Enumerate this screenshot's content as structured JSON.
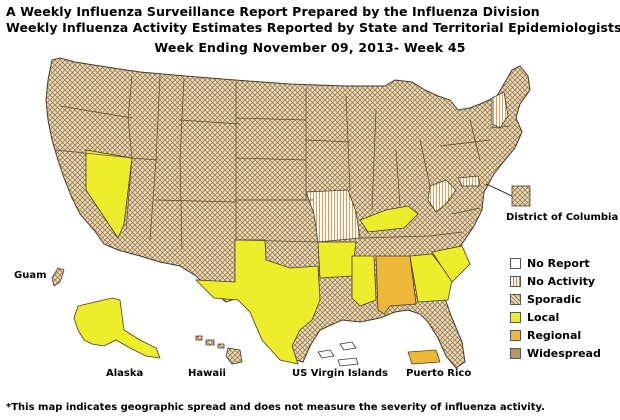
{
  "title_line1": "A Weekly Influenza Surveillance Report Prepared by the Influenza Division",
  "title_line2": "Weekly Influenza Activity Estimates Reported by State and Territorial Epidemiologists*",
  "week_label": "Week Ending November 09, 2013- Week 45",
  "labels": {
    "dc": "District of Columbia",
    "guam": "Guam",
    "alaska": "Alaska",
    "hawaii": "Hawaii",
    "usvi": "US Virgin Islands",
    "puerto_rico": "Puerto Rico"
  },
  "legend": [
    {
      "label": "No Report",
      "color": "#ffffff",
      "pattern": "none"
    },
    {
      "label": "No Activity",
      "color": "#fff8e6",
      "pattern": "vertical-stripes"
    },
    {
      "label": "Sporadic",
      "color": "#e6d3a8",
      "pattern": "crosshatch"
    },
    {
      "label": "Local",
      "color": "#eded2b",
      "pattern": "none"
    },
    {
      "label": "Regional",
      "color": "#f0b83a",
      "pattern": "none"
    },
    {
      "label": "Widespread",
      "color": "#b5946a",
      "pattern": "none"
    }
  ],
  "activity_by_state": {
    "No Activity": [
      "Missouri",
      "West Virginia",
      "New Hampshire",
      "Vermont",
      "Maryland"
    ],
    "Local": [
      "Nevada",
      "Texas",
      "Arkansas",
      "Mississippi",
      "Georgia",
      "South Carolina",
      "Kentucky",
      "Alaska"
    ],
    "Regional": [
      "Alabama",
      "Puerto Rico"
    ],
    "Sporadic": [
      "Washington",
      "Oregon",
      "California",
      "Idaho",
      "Montana",
      "Wyoming",
      "Utah",
      "Arizona",
      "Colorado",
      "New Mexico",
      "North Dakota",
      "South Dakota",
      "Nebraska",
      "Kansas",
      "Oklahoma",
      "Minnesota",
      "Iowa",
      "Wisconsin",
      "Illinois",
      "Michigan",
      "Indiana",
      "Ohio",
      "Tennessee",
      "Louisiana",
      "Florida",
      "North Carolina",
      "Virginia",
      "Pennsylvania",
      "New York",
      "Maine",
      "Massachusetts",
      "Connecticut",
      "Rhode Island",
      "New Jersey",
      "Delaware",
      "District of Columbia",
      "Hawaii",
      "Guam"
    ],
    "No Report": [
      "US Virgin Islands"
    ]
  },
  "footnote": "*This map indicates geographic spread and does not measure the severity of influenza activity."
}
